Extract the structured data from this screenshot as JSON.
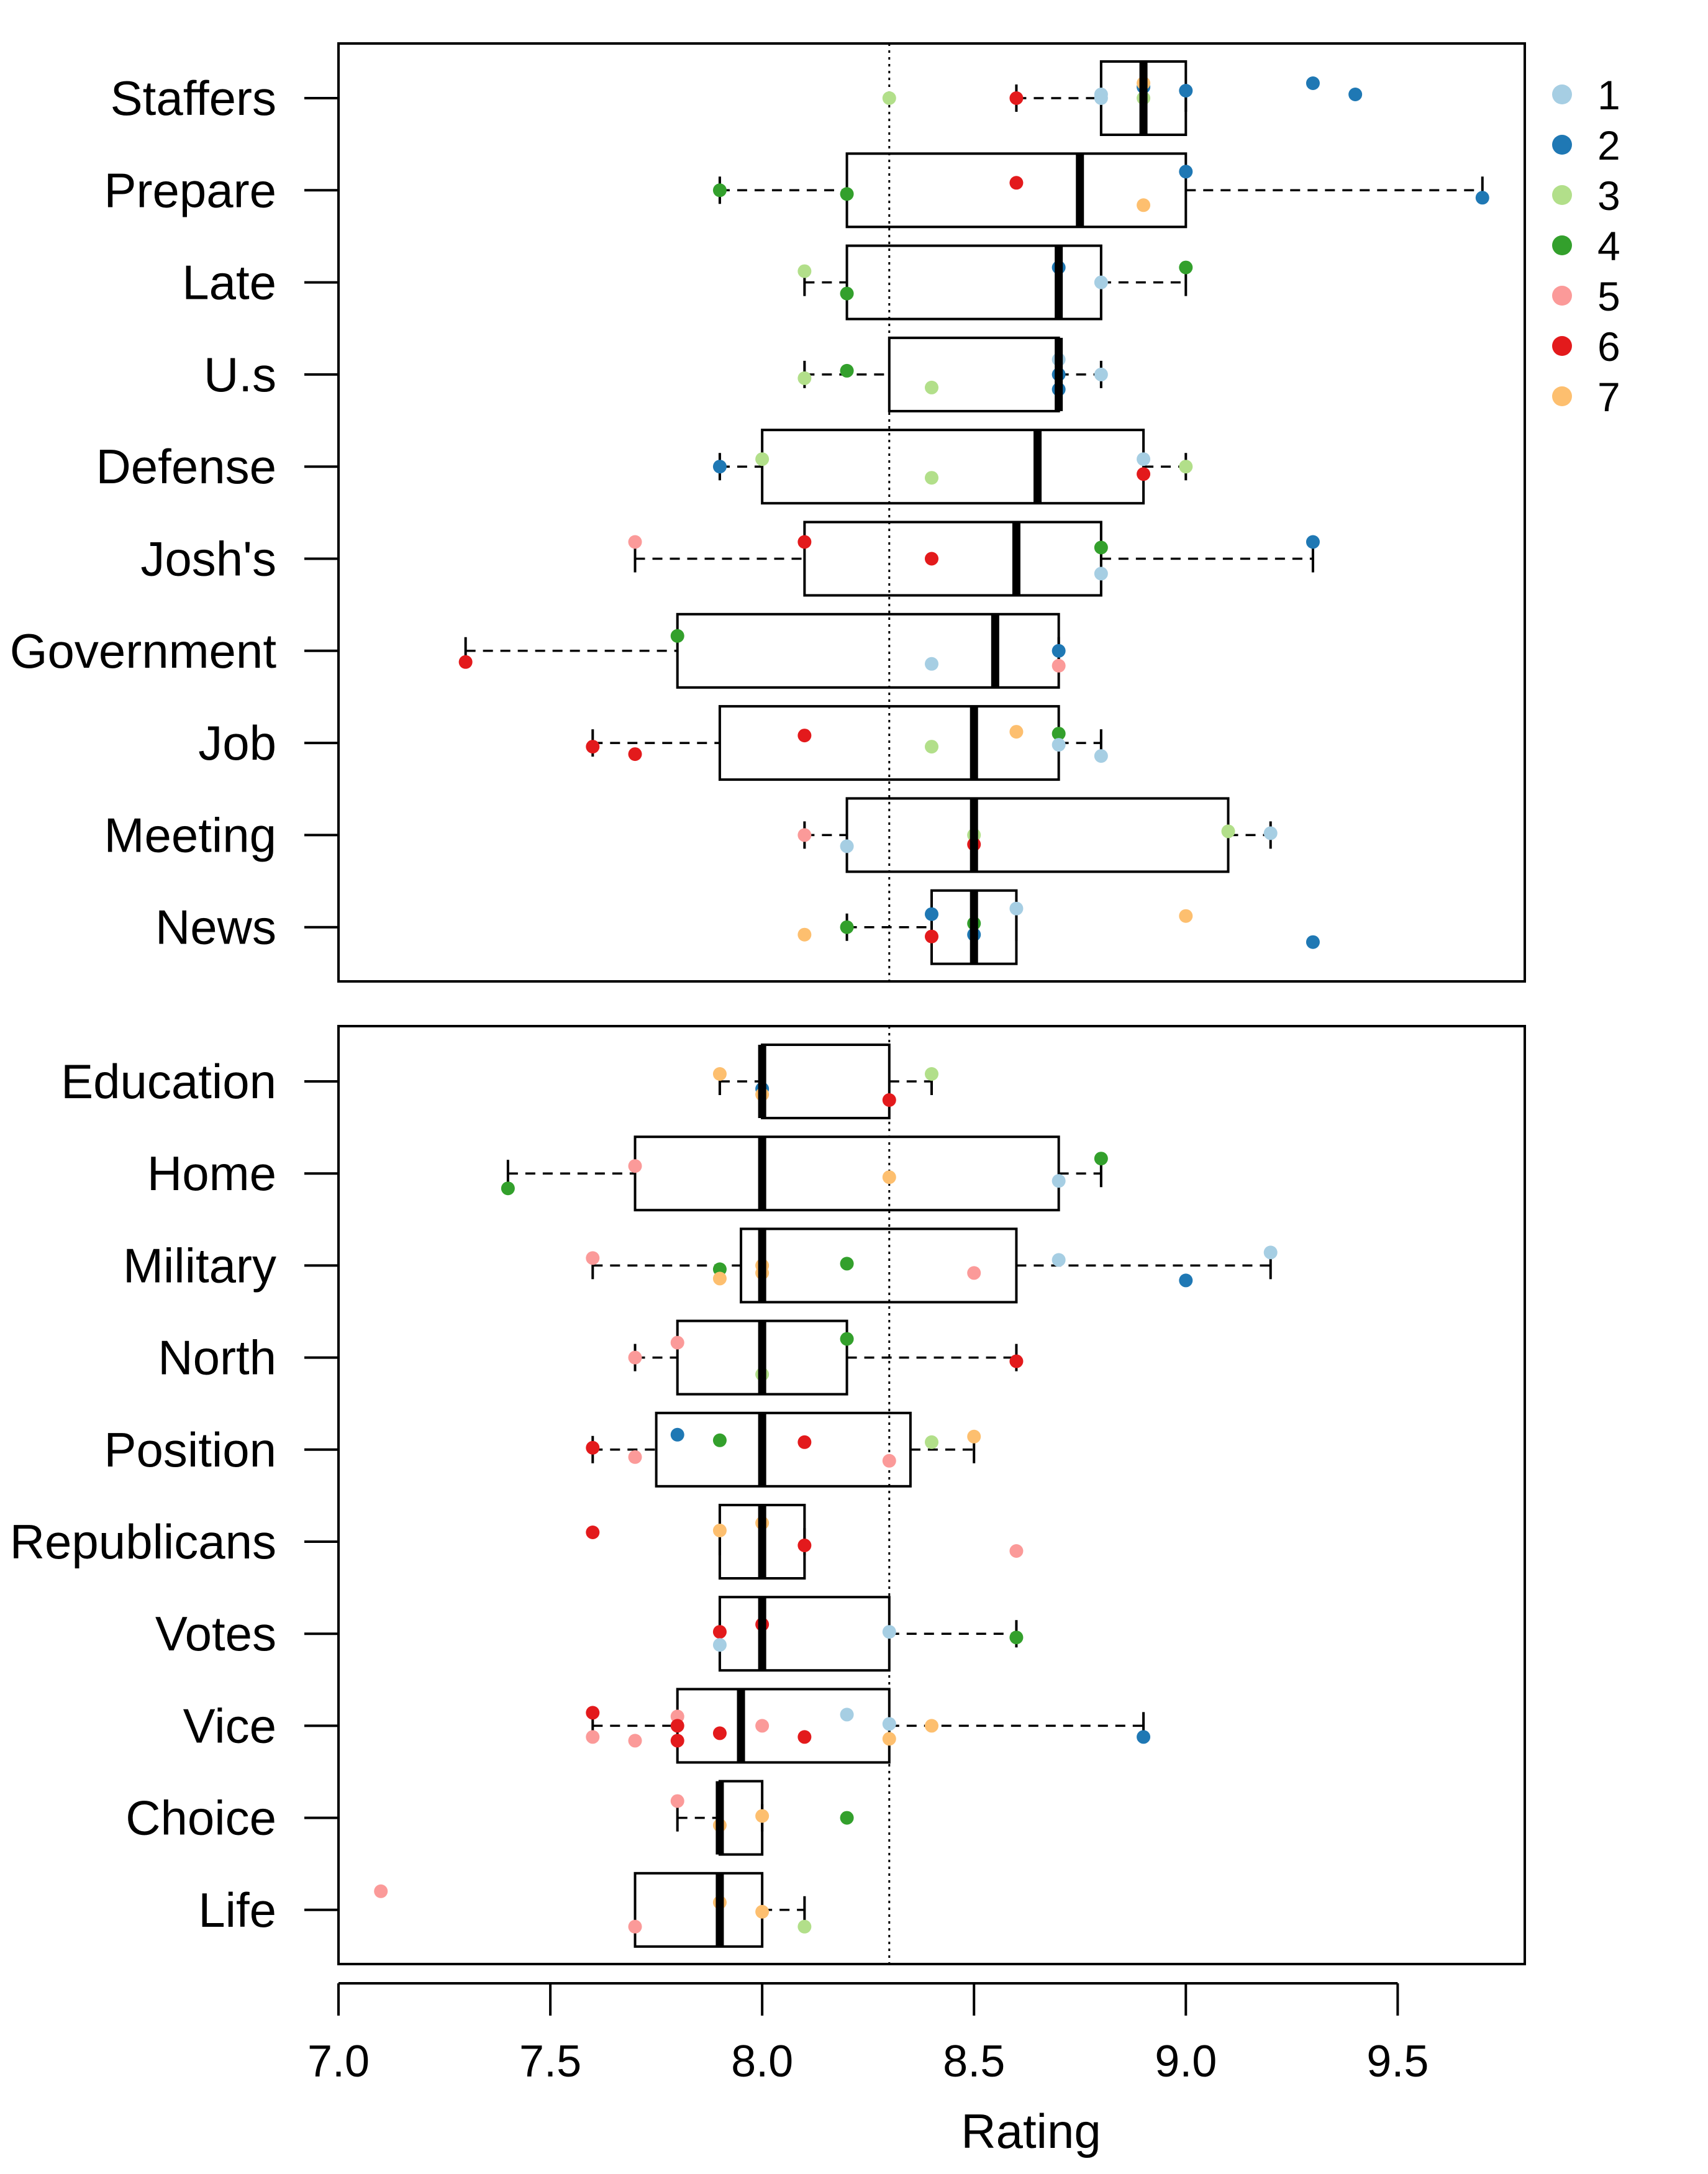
{
  "chart_data": {
    "type": "boxplot",
    "xlabel": "Rating",
    "xlim": [
      7.0,
      9.8
    ],
    "x_ticks": [
      7.0,
      7.5,
      8.0,
      8.5,
      9.0,
      9.5
    ],
    "x_tick_labels": [
      "7.0",
      "7.5",
      "8.0",
      "8.5",
      "9.0",
      "9.5"
    ],
    "reference_line": 8.3,
    "legend": {
      "placement": "top-right",
      "entries": [
        {
          "label": "1",
          "color": "#a6cee3"
        },
        {
          "label": "2",
          "color": "#1f78b4"
        },
        {
          "label": "3",
          "color": "#b2df8a"
        },
        {
          "label": "4",
          "color": "#33a02c"
        },
        {
          "label": "5",
          "color": "#fb9a99"
        },
        {
          "label": "6",
          "color": "#e31a1c"
        },
        {
          "label": "7",
          "color": "#fdbf6f"
        }
      ]
    },
    "panels": [
      {
        "categories": [
          {
            "label": "Staffers",
            "box": {
              "whisker_low": 8.6,
              "q1": 8.8,
              "median": 8.9,
              "q3": 9.0,
              "whisker_high": 9.0
            },
            "points": [
              [
                8.3,
                3,
                0
              ],
              [
                8.6,
                6,
                0
              ],
              [
                8.8,
                1,
                0.1
              ],
              [
                8.8,
                1,
                0
              ],
              [
                8.9,
                2,
                0.3
              ],
              [
                8.9,
                3,
                0
              ],
              [
                8.9,
                7,
                0.4
              ],
              [
                9.0,
                2,
                0.2
              ],
              [
                9.3,
                2,
                0.4
              ],
              [
                9.4,
                2,
                0.1
              ]
            ]
          },
          {
            "label": "Prepare",
            "box": {
              "whisker_low": 7.9,
              "q1": 8.2,
              "median": 8.75,
              "q3": 9.0,
              "whisker_high": 9.7
            },
            "points": [
              [
                7.9,
                4,
                0
              ],
              [
                8.2,
                4,
                -0.1
              ],
              [
                8.6,
                6,
                0.2
              ],
              [
                8.9,
                7,
                -0.4
              ],
              [
                9.0,
                2,
                0.5
              ],
              [
                9.7,
                2,
                -0.2
              ]
            ]
          },
          {
            "label": "Late",
            "box": {
              "whisker_low": 8.1,
              "q1": 8.2,
              "median": 8.7,
              "q3": 8.8,
              "whisker_high": 9.0
            },
            "points": [
              [
                8.1,
                3,
                0.3
              ],
              [
                8.2,
                4,
                -0.3
              ],
              [
                8.7,
                2,
                0.4
              ],
              [
                8.8,
                1,
                0
              ],
              [
                9.0,
                4,
                0.4
              ]
            ]
          },
          {
            "label": "U.s",
            "box": {
              "whisker_low": 8.1,
              "q1": 8.3,
              "median": 8.7,
              "q3": 8.7,
              "whisker_high": 8.8
            },
            "points": [
              [
                8.1,
                3,
                -0.1
              ],
              [
                8.2,
                4,
                0.1
              ],
              [
                8.4,
                3,
                -0.35
              ],
              [
                8.7,
                1,
                0.4
              ],
              [
                8.7,
                2,
                0
              ],
              [
                8.7,
                2,
                -0.4
              ],
              [
                8.8,
                1,
                0
              ]
            ]
          },
          {
            "label": "Defense",
            "box": {
              "whisker_low": 7.9,
              "q1": 8.0,
              "median": 8.65,
              "q3": 8.9,
              "whisker_high": 9.0
            },
            "points": [
              [
                7.9,
                2,
                0
              ],
              [
                8.0,
                3,
                0.2
              ],
              [
                8.4,
                3,
                -0.3
              ],
              [
                8.9,
                1,
                0.2
              ],
              [
                8.9,
                6,
                -0.2
              ],
              [
                9.0,
                3,
                0
              ]
            ]
          },
          {
            "label": "Josh's",
            "box": {
              "whisker_low": 7.7,
              "q1": 8.1,
              "median": 8.6,
              "q3": 8.8,
              "whisker_high": 9.3
            },
            "points": [
              [
                7.7,
                5,
                0.45
              ],
              [
                8.1,
                6,
                0.45
              ],
              [
                8.4,
                6,
                0
              ],
              [
                8.8,
                4,
                0.3
              ],
              [
                8.8,
                1,
                -0.4
              ],
              [
                9.3,
                2,
                0.45
              ]
            ]
          },
          {
            "label": "Government",
            "box": {
              "whisker_low": 7.3,
              "q1": 7.8,
              "median": 8.55,
              "q3": 8.7,
              "whisker_high": 8.7
            },
            "points": [
              [
                7.3,
                6,
                -0.3
              ],
              [
                7.8,
                4,
                0.4
              ],
              [
                8.4,
                1,
                -0.35
              ],
              [
                8.7,
                2,
                0
              ],
              [
                8.7,
                5,
                -0.4
              ]
            ]
          },
          {
            "label": "Job",
            "box": {
              "whisker_low": 7.6,
              "q1": 7.9,
              "median": 8.5,
              "q3": 8.7,
              "whisker_high": 8.8
            },
            "points": [
              [
                7.6,
                6,
                -0.1
              ],
              [
                7.7,
                6,
                -0.3
              ],
              [
                8.1,
                6,
                0.2
              ],
              [
                8.4,
                3,
                -0.1
              ],
              [
                8.6,
                7,
                0.3
              ],
              [
                8.7,
                4,
                0.25
              ],
              [
                8.7,
                1,
                -0.05
              ],
              [
                8.8,
                1,
                -0.35
              ]
            ]
          },
          {
            "label": "Meeting",
            "box": {
              "whisker_low": 8.1,
              "q1": 8.2,
              "median": 8.5,
              "q3": 9.1,
              "whisker_high": 9.2
            },
            "points": [
              [
                8.1,
                5,
                0
              ],
              [
                8.2,
                1,
                -0.3
              ],
              [
                8.5,
                3,
                0
              ],
              [
                8.5,
                6,
                -0.25
              ],
              [
                9.1,
                3,
                0.1
              ],
              [
                9.2,
                1,
                0.05
              ]
            ]
          },
          {
            "label": "News",
            "box": {
              "whisker_low": 8.2,
              "q1": 8.4,
              "median": 8.5,
              "q3": 8.6,
              "whisker_high": 8.6
            },
            "points": [
              [
                8.1,
                7,
                -0.2
              ],
              [
                8.2,
                4,
                0
              ],
              [
                8.4,
                2,
                0.35
              ],
              [
                8.4,
                6,
                -0.25
              ],
              [
                8.5,
                4,
                0.1
              ],
              [
                8.5,
                2,
                -0.2
              ],
              [
                8.6,
                1,
                0.5
              ],
              [
                9.0,
                7,
                0.3
              ],
              [
                9.3,
                2,
                -0.4
              ]
            ]
          }
        ]
      },
      {
        "categories": [
          {
            "label": "Education",
            "box": {
              "whisker_low": 7.9,
              "q1": 8.0,
              "median": 8.0,
              "q3": 8.3,
              "whisker_high": 8.4
            },
            "points": [
              [
                7.9,
                7,
                0.2
              ],
              [
                8.0,
                2,
                -0.2
              ],
              [
                8.0,
                7,
                -0.35
              ],
              [
                8.3,
                6,
                -0.5
              ],
              [
                8.4,
                3,
                0.2
              ]
            ]
          },
          {
            "label": "Home",
            "box": {
              "whisker_low": 7.4,
              "q1": 7.7,
              "median": 8.0,
              "q3": 8.7,
              "whisker_high": 8.8
            },
            "points": [
              [
                7.4,
                4,
                -0.4
              ],
              [
                7.7,
                5,
                0.2
              ],
              [
                8.3,
                7,
                -0.1
              ],
              [
                8.7,
                1,
                -0.2
              ],
              [
                8.8,
                4,
                0.4
              ]
            ]
          },
          {
            "label": "Military",
            "box": {
              "whisker_low": 7.6,
              "q1": 7.95,
              "median": 8.0,
              "q3": 8.6,
              "whisker_high": 9.2
            },
            "points": [
              [
                7.6,
                5,
                0.2
              ],
              [
                7.9,
                4,
                -0.1
              ],
              [
                7.9,
                7,
                -0.35
              ],
              [
                8.0,
                7,
                -0.2
              ],
              [
                8.0,
                7,
                0
              ],
              [
                8.2,
                4,
                0.05
              ],
              [
                8.5,
                5,
                -0.2
              ],
              [
                8.7,
                1,
                0.15
              ],
              [
                9.0,
                2,
                -0.4
              ],
              [
                9.2,
                1,
                0.35
              ]
            ]
          },
          {
            "label": "North",
            "box": {
              "whisker_low": 7.7,
              "q1": 7.8,
              "median": 8.0,
              "q3": 8.2,
              "whisker_high": 8.6
            },
            "points": [
              [
                7.7,
                5,
                0
              ],
              [
                7.8,
                5,
                0.4
              ],
              [
                8.0,
                3,
                -0.45
              ],
              [
                8.2,
                4,
                0.5
              ],
              [
                8.6,
                6,
                -0.1
              ]
            ]
          },
          {
            "label": "Position",
            "box": {
              "whisker_low": 7.6,
              "q1": 7.75,
              "median": 8.0,
              "q3": 8.35,
              "whisker_high": 8.5
            },
            "points": [
              [
                7.6,
                6,
                0.05
              ],
              [
                7.7,
                5,
                -0.2
              ],
              [
                7.8,
                2,
                0.4
              ],
              [
                7.9,
                4,
                0.25
              ],
              [
                8.1,
                6,
                0.2
              ],
              [
                8.3,
                5,
                -0.3
              ],
              [
                8.4,
                3,
                0.2
              ],
              [
                8.5,
                7,
                0.35
              ]
            ]
          },
          {
            "label": "Republicans",
            "box": {
              "whisker_low": 7.9,
              "q1": 7.9,
              "median": 8.0,
              "q3": 8.1,
              "whisker_high": 8.1
            },
            "points": [
              [
                7.6,
                6,
                0.25
              ],
              [
                7.9,
                7,
                0.3
              ],
              [
                8.0,
                7,
                0.5
              ],
              [
                8.1,
                6,
                -0.1
              ],
              [
                8.6,
                5,
                -0.25
              ]
            ]
          },
          {
            "label": "Votes",
            "box": {
              "whisker_low": 7.9,
              "q1": 7.9,
              "median": 8.0,
              "q3": 8.3,
              "whisker_high": 8.6
            },
            "points": [
              [
                7.9,
                6,
                0.05
              ],
              [
                7.9,
                1,
                -0.3
              ],
              [
                8.0,
                6,
                0.25
              ],
              [
                8.3,
                1,
                0.05
              ],
              [
                8.6,
                4,
                -0.1
              ]
            ]
          },
          {
            "label": "Vice",
            "box": {
              "whisker_low": 7.6,
              "q1": 7.8,
              "median": 7.95,
              "q3": 8.3,
              "whisker_high": 8.9
            },
            "points": [
              [
                7.6,
                6,
                0.35
              ],
              [
                7.6,
                5,
                -0.3
              ],
              [
                7.7,
                5,
                -0.4
              ],
              [
                7.8,
                5,
                0.25
              ],
              [
                7.8,
                6,
                0
              ],
              [
                7.8,
                6,
                -0.4
              ],
              [
                7.9,
                6,
                -0.2
              ],
              [
                8.0,
                5,
                0
              ],
              [
                8.1,
                6,
                -0.3
              ],
              [
                8.2,
                1,
                0.3
              ],
              [
                8.3,
                1,
                0.05
              ],
              [
                8.3,
                7,
                -0.35
              ],
              [
                8.4,
                7,
                0
              ],
              [
                8.9,
                2,
                -0.3
              ]
            ]
          },
          {
            "label": "Choice",
            "box": {
              "whisker_low": 7.8,
              "q1": 7.9,
              "median": 7.9,
              "q3": 8.0,
              "whisker_high": 8.0
            },
            "points": [
              [
                7.8,
                5,
                0.45
              ],
              [
                7.9,
                7,
                -0.2
              ],
              [
                8.0,
                7,
                0.05
              ],
              [
                8.2,
                4,
                0
              ]
            ]
          },
          {
            "label": "Life",
            "box": {
              "whisker_low": 7.7,
              "q1": 7.7,
              "median": 7.9,
              "q3": 8.0,
              "whisker_high": 8.1
            },
            "points": [
              [
                7.1,
                5,
                0.5
              ],
              [
                7.7,
                5,
                -0.45
              ],
              [
                7.9,
                7,
                0.2
              ],
              [
                8.0,
                7,
                -0.05
              ],
              [
                8.1,
                3,
                -0.45
              ]
            ]
          }
        ]
      }
    ]
  }
}
